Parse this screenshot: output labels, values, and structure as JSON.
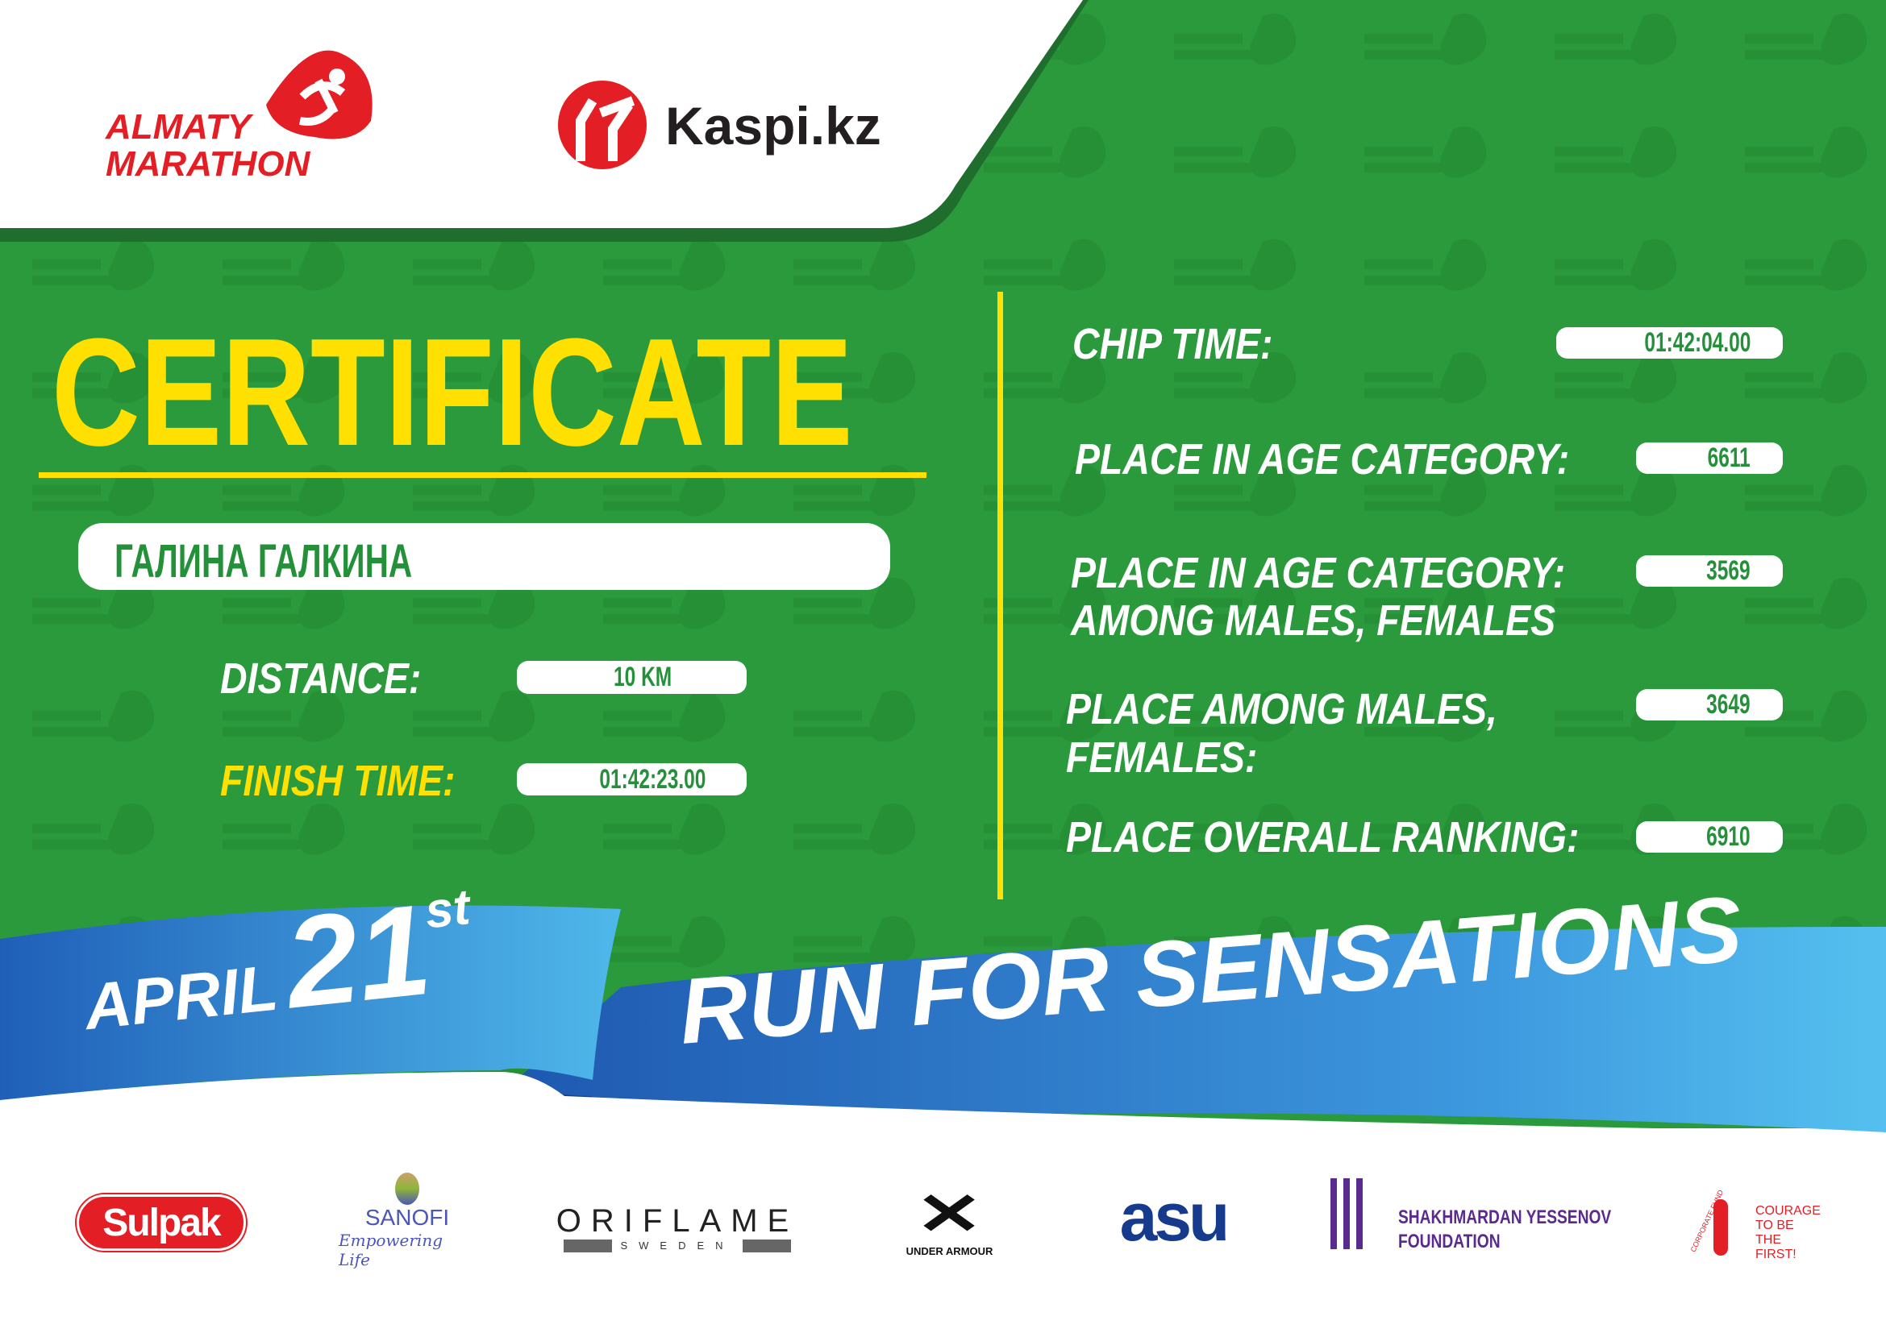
{
  "header": {
    "event_logo": {
      "line1": "ALMATY",
      "line2": "MARATHON"
    },
    "sponsor_logo": "Kaspi.kz"
  },
  "title": "CERTIFICATE",
  "participant_name": "ГАЛИНА ГАЛКИНА",
  "left_fields": [
    {
      "label": "DISTANCE:",
      "value": "10 KM"
    },
    {
      "label": "FINISH TIME:",
      "value": "01:42:23.00"
    }
  ],
  "right_fields": [
    {
      "label": "CHIP TIME:",
      "value": "01:42:04.00"
    },
    {
      "label": "PLACE IN AGE CATEGORY:",
      "value": "6611"
    },
    {
      "label": "PLACE IN AGE CATEGORY:",
      "label2": "AMONG MALES, FEMALES",
      "value": "3569"
    },
    {
      "label": "PLACE AMONG MALES,",
      "label2": "FEMALES:",
      "value": "3649"
    },
    {
      "label": "PLACE OVERALL RANKING:",
      "value": "6910"
    }
  ],
  "banner": {
    "month": "APRIL",
    "day": "21",
    "suffix": "st",
    "slogan": "RUN FOR SENSATIONS"
  },
  "sponsors": [
    {
      "name": "Sulpak"
    },
    {
      "name": "SANOFI",
      "tagline": "Empowering Life"
    },
    {
      "name": "ORIFLAME",
      "tagline": "SWEDEN"
    },
    {
      "name": "UNDER ARMOUR"
    },
    {
      "name": "asu"
    },
    {
      "name": "SHAKHMARDAN YESSENOV",
      "tagline": "FOUNDATION"
    },
    {
      "name": "COURAGE",
      "tagline": "TO BE",
      "tagline2": "THE FIRST!",
      "arc": "CORPORATE FUND"
    }
  ],
  "colors": {
    "green": "#2a9a3c",
    "yellow": "#ffe000",
    "red": "#e31e24",
    "blue": "#2f7fd0"
  }
}
